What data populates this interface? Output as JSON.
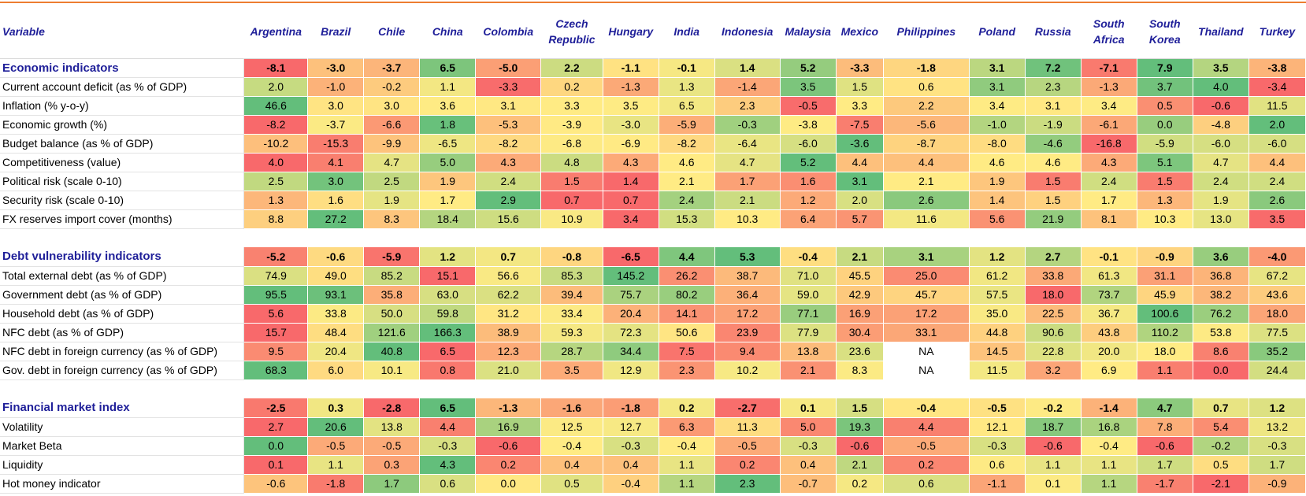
{
  "header": {
    "variable": "Variable",
    "countries": [
      "Argentina",
      "Brazil",
      "Chile",
      "China",
      "Colombia",
      "Czech Republic",
      "Hungary",
      "India",
      "Indonesia",
      "Malaysia",
      "Mexico",
      "Philippines",
      "Poland",
      "Russia",
      "South Africa",
      "South Korea",
      "Thailand",
      "Turkey"
    ]
  },
  "colors": {
    "low": "#f8696b",
    "mid": "#ffeb84",
    "high": "#63be7b",
    "na": "#ffffff",
    "header_text": "#1f1f99",
    "top_rule": "#ed7d31"
  },
  "chart_data": {
    "type": "table",
    "columns": [
      "Argentina",
      "Brazil",
      "Chile",
      "China",
      "Colombia",
      "Czech Republic",
      "Hungary",
      "India",
      "Indonesia",
      "Malaysia",
      "Mexico",
      "Philippines",
      "Poland",
      "Russia",
      "South Africa",
      "South Korea",
      "Thailand",
      "Turkey"
    ],
    "sections": [
      {
        "name": "Economic indicators",
        "summary": [
          "-8.1",
          "-3.0",
          "-3.7",
          "6.5",
          "-5.0",
          "2.2",
          "-1.1",
          "-0.1",
          "1.4",
          "5.2",
          "-3.3",
          "-1.8",
          "3.1",
          "7.2",
          "-7.1",
          "7.9",
          "3.5",
          "-3.8"
        ],
        "rows": [
          {
            "label": "Current account deficit (as % of GDP)",
            "values": [
              "2.0",
              "-1.0",
              "-0.2",
              "1.1",
              "-3.3",
              "0.2",
              "-1.3",
              "1.3",
              "-1.4",
              "3.5",
              "1.5",
              "0.6",
              "3.1",
              "2.3",
              "-1.3",
              "3.7",
              "4.0",
              "-3.4"
            ]
          },
          {
            "label": "Inflation (% y-o-y)",
            "values": [
              "46.6",
              "3.0",
              "3.0",
              "3.6",
              "3.1",
              "3.3",
              "3.5",
              "6.5",
              "2.3",
              "-0.5",
              "3.3",
              "2.2",
              "3.4",
              "3.1",
              "3.4",
              "0.5",
              "-0.6",
              "11.5"
            ]
          },
          {
            "label": "Economic growth (%)",
            "values": [
              "-8.2",
              "-3.7",
              "-6.6",
              "1.8",
              "-5.3",
              "-3.9",
              "-3.0",
              "-5.9",
              "-0.3",
              "-3.8",
              "-7.5",
              "-5.6",
              "-1.0",
              "-1.9",
              "-6.1",
              "0.0",
              "-4.8",
              "2.0"
            ]
          },
          {
            "label": "Budget balance (as % of GDP)",
            "values": [
              "-10.2",
              "-15.3",
              "-9.9",
              "-6.5",
              "-8.2",
              "-6.8",
              "-6.9",
              "-8.2",
              "-6.4",
              "-6.0",
              "-3.6",
              "-8.7",
              "-8.0",
              "-4.6",
              "-16.8",
              "-5.9",
              "-6.0",
              "-6.0"
            ]
          },
          {
            "label": "Competitiveness  (value)",
            "values": [
              "4.0",
              "4.1",
              "4.7",
              "5.0",
              "4.3",
              "4.8",
              "4.3",
              "4.6",
              "4.7",
              "5.2",
              "4.4",
              "4.4",
              "4.6",
              "4.6",
              "4.3",
              "5.1",
              "4.7",
              "4.4"
            ]
          },
          {
            "label": "Political risk (scale 0-10)",
            "values": [
              "2.5",
              "3.0",
              "2.5",
              "1.9",
              "2.4",
              "1.5",
              "1.4",
              "2.1",
              "1.7",
              "1.6",
              "3.1",
              "2.1",
              "1.9",
              "1.5",
              "2.4",
              "1.5",
              "2.4",
              "2.4"
            ]
          },
          {
            "label": "Security risk (scale 0-10)",
            "values": [
              "1.3",
              "1.6",
              "1.9",
              "1.7",
              "2.9",
              "0.7",
              "0.7",
              "2.4",
              "2.1",
              "1.2",
              "2.0",
              "2.6",
              "1.4",
              "1.5",
              "1.7",
              "1.3",
              "1.9",
              "2.6"
            ]
          },
          {
            "label": "FX reserves import cover (months)",
            "values": [
              "8.8",
              "27.2",
              "8.3",
              "18.4",
              "15.6",
              "10.9",
              "3.4",
              "15.3",
              "10.3",
              "6.4",
              "5.7",
              "11.6",
              "5.6",
              "21.9",
              "8.1",
              "10.3",
              "13.0",
              "3.5"
            ]
          }
        ]
      },
      {
        "name": "Debt vulnerability indicators",
        "summary": [
          "-5.2",
          "-0.6",
          "-5.9",
          "1.2",
          "0.7",
          "-0.8",
          "-6.5",
          "4.4",
          "5.3",
          "-0.4",
          "2.1",
          "3.1",
          "1.2",
          "2.7",
          "-0.1",
          "-0.9",
          "3.6",
          "-4.0"
        ],
        "rows": [
          {
            "label": "Total external debt (as % of GDP)",
            "values": [
              "74.9",
              "49.0",
              "85.2",
              "15.1",
              "56.6",
              "85.3",
              "145.2",
              "26.2",
              "38.7",
              "71.0",
              "45.5",
              "25.0",
              "61.2",
              "33.8",
              "61.3",
              "31.1",
              "36.8",
              "67.2"
            ]
          },
          {
            "label": "Government debt (as % of GDP)",
            "values": [
              "95.5",
              "93.1",
              "35.8",
              "63.0",
              "62.2",
              "39.4",
              "75.7",
              "80.2",
              "36.4",
              "59.0",
              "42.9",
              "45.7",
              "57.5",
              "18.0",
              "73.7",
              "45.9",
              "38.2",
              "43.6"
            ]
          },
          {
            "label": "Household debt (as % of GDP)",
            "values": [
              "5.6",
              "33.8",
              "50.0",
              "59.8",
              "31.2",
              "33.4",
              "20.4",
              "14.1",
              "17.2",
              "77.1",
              "16.9",
              "17.2",
              "35.0",
              "22.5",
              "36.7",
              "100.6",
              "76.2",
              "18.0"
            ]
          },
          {
            "label": "NFC debt (as % of GDP)",
            "values": [
              "15.7",
              "48.4",
              "121.6",
              "166.3",
              "38.9",
              "59.3",
              "72.3",
              "50.6",
              "23.9",
              "77.9",
              "30.4",
              "33.1",
              "44.8",
              "90.6",
              "43.8",
              "110.2",
              "53.8",
              "77.5"
            ]
          },
          {
            "label": "NFC debt in foreign currency (as % of GDP)",
            "values": [
              "9.5",
              "20.4",
              "40.8",
              "6.5",
              "12.3",
              "28.7",
              "34.4",
              "7.5",
              "9.4",
              "13.8",
              "23.6",
              "NA",
              "14.5",
              "22.8",
              "20.0",
              "18.0",
              "8.6",
              "35.2"
            ]
          },
          {
            "label": "Gov. debt in foreign currency (as % of GDP)",
            "values": [
              "68.3",
              "6.0",
              "10.1",
              "0.8",
              "21.0",
              "3.5",
              "12.9",
              "2.3",
              "10.2",
              "2.1",
              "8.3",
              "NA",
              "11.5",
              "3.2",
              "6.9",
              "1.1",
              "0.0",
              "24.4"
            ]
          }
        ]
      },
      {
        "name": "Financial market index",
        "summary": [
          "-2.5",
          "0.3",
          "-2.8",
          "6.5",
          "-1.3",
          "-1.6",
          "-1.8",
          "0.2",
          "-2.7",
          "0.1",
          "1.5",
          "-0.4",
          "-0.5",
          "-0.2",
          "-1.4",
          "4.7",
          "0.7",
          "1.2"
        ],
        "rows": [
          {
            "label": "Volatility",
            "values": [
              "2.7",
              "20.6",
              "13.8",
              "4.4",
              "16.9",
              "12.5",
              "12.7",
              "6.3",
              "11.3",
              "5.0",
              "19.3",
              "4.4",
              "12.1",
              "18.7",
              "16.8",
              "7.8",
              "5.4",
              "13.2"
            ]
          },
          {
            "label": "Market Beta",
            "values": [
              "0.0",
              "-0.5",
              "-0.5",
              "-0.3",
              "-0.6",
              "-0.4",
              "-0.3",
              "-0.4",
              "-0.5",
              "-0.3",
              "-0.6",
              "-0.5",
              "-0.3",
              "-0.6",
              "-0.4",
              "-0.6",
              "-0.2",
              "-0.3"
            ]
          },
          {
            "label": "Liquidity",
            "values": [
              "0.1",
              "1.1",
              "0.3",
              "4.3",
              "0.2",
              "0.4",
              "0.4",
              "1.1",
              "0.2",
              "0.4",
              "2.1",
              "0.2",
              "0.6",
              "1.1",
              "1.1",
              "1.7",
              "0.5",
              "1.7"
            ]
          },
          {
            "label": "Hot money indicator",
            "values": [
              "-0.6",
              "-1.8",
              "1.7",
              "0.6",
              "0.0",
              "0.5",
              "-0.4",
              "1.1",
              "2.3",
              "-0.7",
              "0.2",
              "0.6",
              "-1.1",
              "0.1",
              "1.1",
              "-1.7",
              "-2.1",
              "-0.9"
            ]
          }
        ]
      }
    ]
  }
}
